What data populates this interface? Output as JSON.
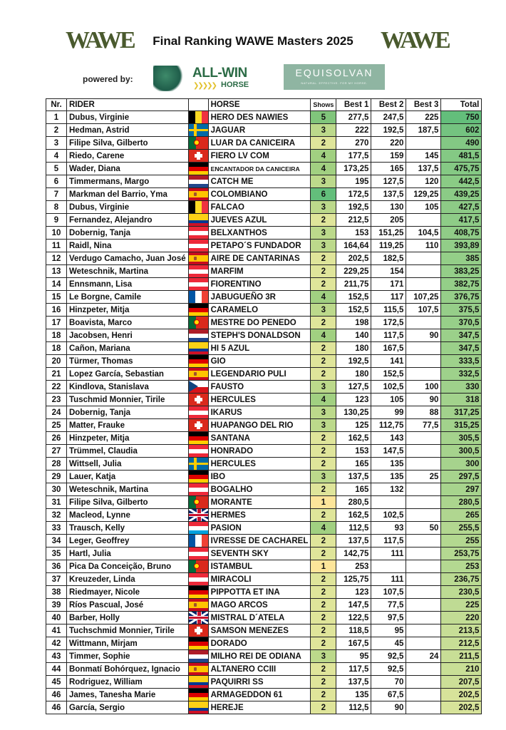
{
  "header": {
    "title": "Final Ranking WAWE Masters 2025",
    "logo_left": "WAWE",
    "logo_right": "WAWE",
    "powered_by": "powered by:",
    "sponsor1": {
      "line1": "ALL-WIN",
      "line2": "HORSE"
    },
    "sponsor2": {
      "name": "EQUISOLVAN",
      "tagline": "NATURAL. EFFECTIVE. FOR MY HORSE."
    }
  },
  "table": {
    "columns": [
      "Nr.",
      "RIDER",
      "",
      "HORSE",
      "Shows",
      "Best 1",
      "Best 2",
      "Best 3",
      "Total"
    ],
    "rows": [
      [
        "1",
        "Dubus, Virginie",
        "belgium-flag-icon",
        "HERO DES NAWIES",
        "5",
        "277,5",
        "247,5",
        "225",
        "750"
      ],
      [
        "2",
        "Hedman, Astrid",
        "sweden-flag-icon",
        "JAGUAR",
        "3",
        "222",
        "192,5",
        "187,5",
        "602"
      ],
      [
        "3",
        "Filipe Silva, Gilberto",
        "portugal-flag-icon",
        "LUAR DA CANICEIRA",
        "2",
        "270",
        "220",
        "",
        "490"
      ],
      [
        "4",
        "Riedo, Carene",
        "switzerland-flag-icon",
        "FIERO LV COM",
        "4",
        "177,5",
        "159",
        "145",
        "481,5"
      ],
      [
        "5",
        "Wader, Diana",
        "germany-flag-icon",
        "ENCANTADOR DA CANICEIRA",
        "4",
        "173,25",
        "165",
        "137,5",
        "475,75"
      ],
      [
        "6",
        "Timmermans, Margo",
        "netherlands-flag-icon",
        "CATCH ME",
        "3",
        "195",
        "127,5",
        "120",
        "442,5"
      ],
      [
        "7",
        "Markman del Barrio, Yma",
        "spain-flag-icon",
        "COLOMBIANO",
        "6",
        "172,5",
        "137,5",
        "129,25",
        "439,25"
      ],
      [
        "8",
        "Dubus, Virginie",
        "belgium-flag-icon",
        "FALCAO",
        "3",
        "192,5",
        "130",
        "105",
        "427,5"
      ],
      [
        "9",
        "Fernandez, Alejandro",
        "colombia-flag-icon",
        "JUEVES AZUL",
        "2",
        "212,5",
        "205",
        "",
        "417,5"
      ],
      [
        "10",
        "Dobernig, Tanja",
        "austria-flag-icon",
        "BELXANTHOS",
        "3",
        "153",
        "151,25",
        "104,5",
        "408,75"
      ],
      [
        "11",
        "Raidl, Nina",
        "austria-flag-icon",
        "PETAPO´S FUNDADOR",
        "3",
        "164,64",
        "119,25",
        "110",
        "393,89"
      ],
      [
        "12",
        "Verdugo Camacho, Juan José",
        "spain-flag-icon",
        "AIRE DE CANTARINAS",
        "2",
        "202,5",
        "182,5",
        "",
        "385"
      ],
      [
        "13",
        "Weteschnik, Martina",
        "austria-flag-icon",
        "MARFIM",
        "2",
        "229,25",
        "154",
        "",
        "383,25"
      ],
      [
        "14",
        "Ennsmann, Lisa",
        "austria-flag-icon",
        "FIORENTINO",
        "2",
        "211,75",
        "171",
        "",
        "382,75"
      ],
      [
        "15",
        "Le Borgne, Camile",
        "france-flag-icon",
        "JABUGUEÑO 3R",
        "4",
        "152,5",
        "117",
        "107,25",
        "376,75"
      ],
      [
        "16",
        "Hinzpeter, Mitja",
        "germany-flag-icon",
        "CARAMELO",
        "3",
        "152,5",
        "115,5",
        "107,5",
        "375,5"
      ],
      [
        "17",
        "Boavista, Marco",
        "portugal-flag-icon",
        "MESTRE DO PENEDO",
        "2",
        "198",
        "172,5",
        "",
        "370,5"
      ],
      [
        "18",
        "Jacobsen, Henri",
        "netherlands-flag-icon",
        "STEPH'S DONALDSON",
        "4",
        "140",
        "117,5",
        "90",
        "347,5"
      ],
      [
        "18",
        "Cañon, Mariana",
        "colombia-flag-icon",
        "HI 5 AZUL",
        "2",
        "180",
        "167,5",
        "",
        "347,5"
      ],
      [
        "20",
        "Türmer, Thomas",
        "germany-flag-icon",
        "GIO",
        "2",
        "192,5",
        "141",
        "",
        "333,5"
      ],
      [
        "21",
        "Lopez García, Sebastian",
        "spain-flag-icon",
        "LEGENDARIO PULI",
        "2",
        "180",
        "152,5",
        "",
        "332,5"
      ],
      [
        "22",
        "Kindlova, Stanislava",
        "czechia-flag-icon",
        "FAUSTO",
        "3",
        "127,5",
        "102,5",
        "100",
        "330"
      ],
      [
        "23",
        "Tuschmid Monnier, Tirile",
        "switzerland-flag-icon",
        "HERCULES",
        "4",
        "123",
        "105",
        "90",
        "318"
      ],
      [
        "24",
        "Dobernig, Tanja",
        "austria-flag-icon",
        "IKARUS",
        "3",
        "130,25",
        "99",
        "88",
        "317,25"
      ],
      [
        "25",
        "Matter, Frauke",
        "switzerland-flag-icon",
        "HUAPANGO DEL RIO",
        "3",
        "125",
        "112,75",
        "77,5",
        "315,25"
      ],
      [
        "26",
        "Hinzpeter, Mitja",
        "germany-flag-icon",
        "SANTANA",
        "2",
        "162,5",
        "143",
        "",
        "305,5"
      ],
      [
        "27",
        "Trümmel, Claudia",
        "austria-flag-icon",
        "HONRADO",
        "2",
        "153",
        "147,5",
        "",
        "300,5"
      ],
      [
        "28",
        "Wittsell, Julia",
        "sweden-flag-icon",
        "HERCULES",
        "2",
        "165",
        "135",
        "",
        "300"
      ],
      [
        "29",
        "Lauer, Katja",
        "germany-flag-icon",
        "IBO",
        "3",
        "137,5",
        "135",
        "25",
        "297,5"
      ],
      [
        "30",
        "Weteschnik, Martina",
        "austria-flag-icon",
        "BOGALHO",
        "2",
        "165",
        "132",
        "",
        "297"
      ],
      [
        "31",
        "Filipe Silva, Gilberto",
        "portugal-flag-icon",
        "MORANTE",
        "1",
        "280,5",
        "",
        "",
        "280,5"
      ],
      [
        "32",
        "Macleod, Lynne",
        "uk-flag-icon",
        "HERMES",
        "2",
        "162,5",
        "102,5",
        "",
        "265"
      ],
      [
        "33",
        "Trausch, Kelly",
        "luxembourg-flag-icon",
        "PASION",
        "4",
        "112,5",
        "93",
        "50",
        "255,5"
      ],
      [
        "34",
        "Leger, Geoffrey",
        "france-flag-icon",
        "IVRESSE DE CACHAREL",
        "2",
        "137,5",
        "117,5",
        "",
        "255"
      ],
      [
        "35",
        "Hartl, Julia",
        "austria-flag-icon",
        "SEVENTH SKY",
        "2",
        "142,75",
        "111",
        "",
        "253,75"
      ],
      [
        "36",
        "Pica Da Conceição, Bruno",
        "portugal-flag-icon",
        "ISTAMBUL",
        "1",
        "253",
        "",
        "",
        "253"
      ],
      [
        "37",
        "Kreuzeder, Linda",
        "austria-flag-icon",
        "MIRACOLI",
        "2",
        "125,75",
        "111",
        "",
        "236,75"
      ],
      [
        "38",
        "Riedmayer, Nicole",
        "germany-flag-icon",
        "PIPPOTTA ET INA",
        "2",
        "123",
        "107,5",
        "",
        "230,5"
      ],
      [
        "39",
        "Ríos Pascual, José",
        "spain-flag-icon",
        "MAGO ARCOS",
        "2",
        "147,5",
        "77,5",
        "",
        "225"
      ],
      [
        "40",
        "Barber, Holly",
        "uk-flag-icon",
        "MISTRAL D´ATELA",
        "2",
        "122,5",
        "97,5",
        "",
        "220"
      ],
      [
        "41",
        "Tuchschmid Monnier, Tirile",
        "switzerland-flag-icon",
        "SAMSON MENEZES",
        "2",
        "118,5",
        "95",
        "",
        "213,5"
      ],
      [
        "42",
        "Wittmann, Mirjam",
        "germany-flag-icon",
        "DORADO",
        "2",
        "167,5",
        "45",
        "",
        "212,5"
      ],
      [
        "43",
        "Timmer, Sophie",
        "netherlands-flag-icon",
        "MILHO REI DE ODIANA",
        "3",
        "95",
        "92,5",
        "24",
        "211,5"
      ],
      [
        "44",
        "Bonmatí Bohórquez, Ignacio",
        "spain-flag-icon",
        "ALTANERO CCIII",
        "2",
        "117,5",
        "92,5",
        "",
        "210"
      ],
      [
        "45",
        "Rodriguez, William",
        "colombia-flag-icon",
        "PAQUIRRI SS",
        "2",
        "137,5",
        "70",
        "",
        "207,5"
      ],
      [
        "46",
        "James, Tanesha Marie",
        "germany-flag-icon",
        "ARMAGEDDON 61",
        "2",
        "135",
        "67,5",
        "",
        "202,5"
      ],
      [
        "46",
        "García, Sergio",
        "colombia-flag-icon",
        "HEREJE",
        "2",
        "112,5",
        "90",
        "",
        "202,5"
      ]
    ]
  },
  "colors": {
    "shows_scale": {
      "1": "#fde59a",
      "2": "#dfe59a",
      "3": "#bcd98b",
      "4": "#a1d081",
      "5": "#80c57b",
      "6": "#63be7b"
    },
    "total_high": "#63be7b",
    "total_low": "#d7e39a",
    "logo": "#4a5a2e"
  }
}
